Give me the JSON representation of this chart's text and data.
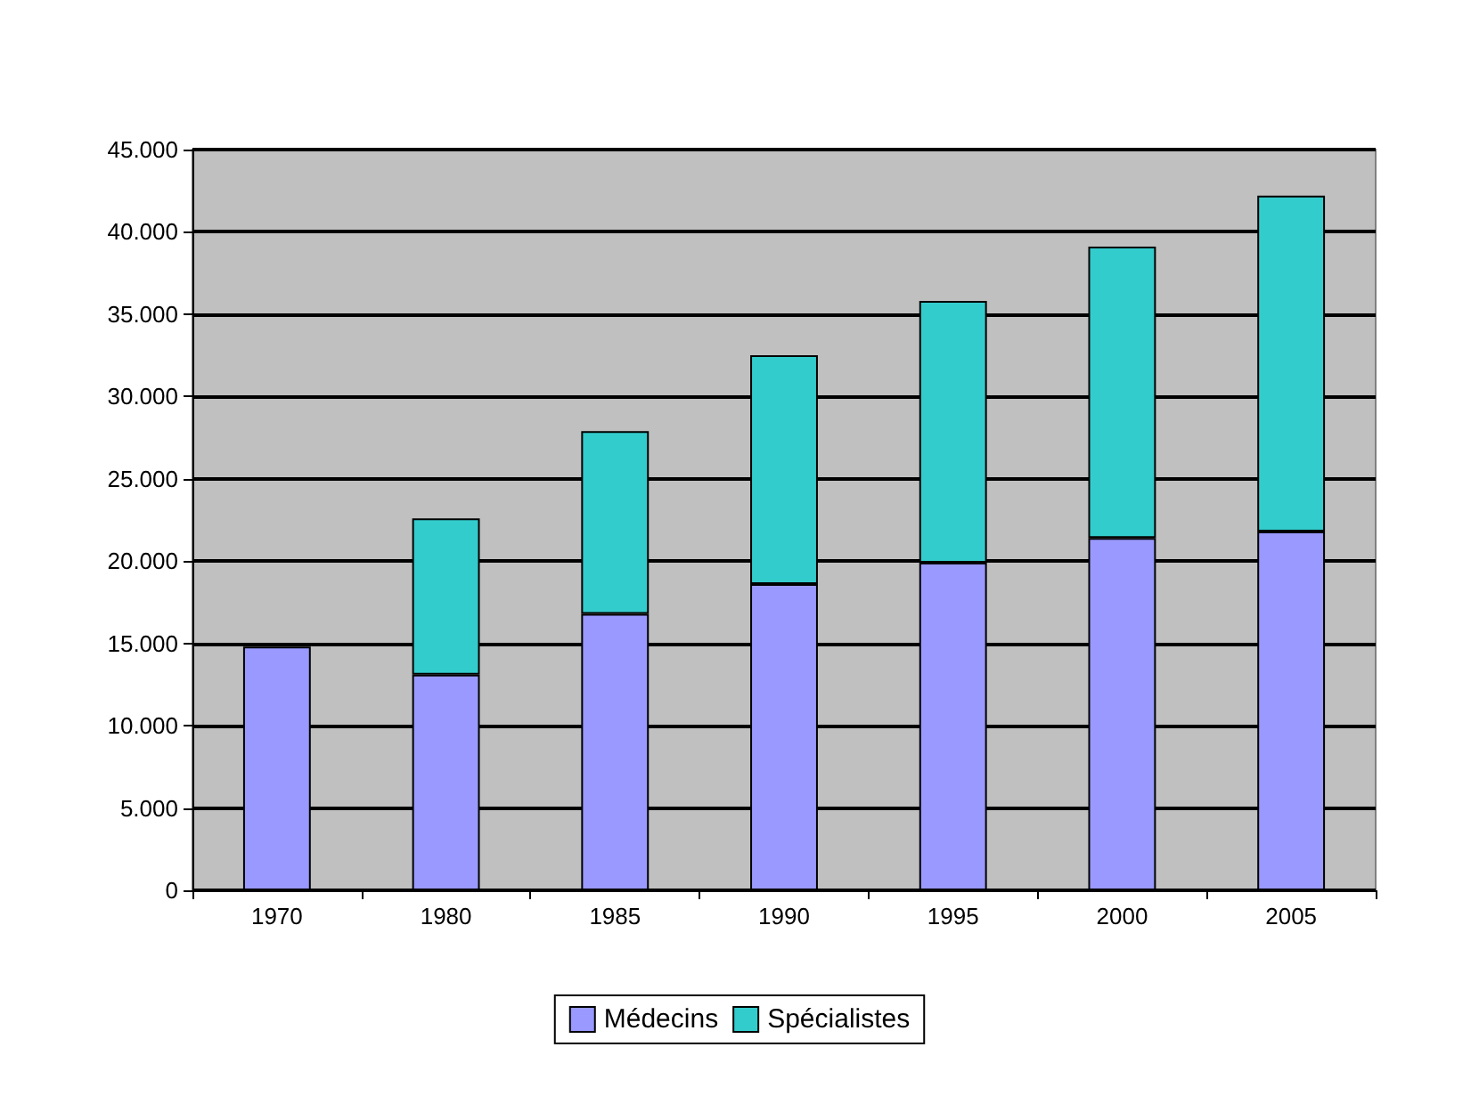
{
  "chart_data": {
    "type": "bar",
    "stacked": true,
    "categories": [
      "1970",
      "1980",
      "1985",
      "1990",
      "1995",
      "2000",
      "2005"
    ],
    "series": [
      {
        "name": "Médecins",
        "color": "#9999ff",
        "values": [
          14800,
          13100,
          16800,
          18600,
          19900,
          21400,
          21800
        ]
      },
      {
        "name": "Spécialistes",
        "color": "#33cccc",
        "values": [
          null,
          9500,
          11100,
          13900,
          15900,
          17700,
          20400
        ]
      }
    ],
    "ylim": [
      0,
      45000
    ],
    "yticks": [
      {
        "value": 0,
        "label": "0"
      },
      {
        "value": 5000,
        "label": "5.000"
      },
      {
        "value": 10000,
        "label": "10.000"
      },
      {
        "value": 15000,
        "label": "15.000"
      },
      {
        "value": 20000,
        "label": "20.000"
      },
      {
        "value": 25000,
        "label": "25.000"
      },
      {
        "value": 30000,
        "label": "30.000"
      },
      {
        "value": 35000,
        "label": "35.000"
      },
      {
        "value": 40000,
        "label": "40.000"
      },
      {
        "value": 45000,
        "label": "45.000"
      }
    ],
    "grid": "y",
    "legend": "bottom"
  }
}
